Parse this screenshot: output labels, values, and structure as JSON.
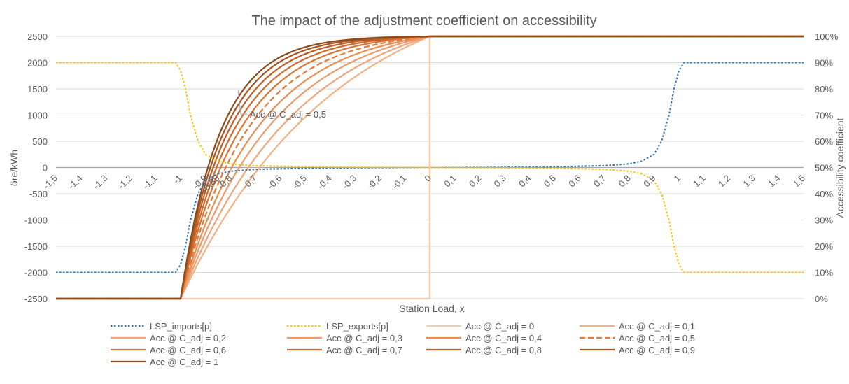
{
  "chart_data": {
    "type": "line",
    "title": "The impact of the adjustment coefficient on accessibility",
    "xlabel": "Station Load, x",
    "ylabel": "öre/kWh",
    "ylabel_right": "Accessibility coefficient",
    "xlim": [
      -1.5,
      1.5
    ],
    "ylim": [
      -2500,
      2500
    ],
    "ylim_right": [
      0,
      100
    ],
    "x_ticks": [
      "-1,5",
      "-1,4",
      "-1,3",
      "-1,2",
      "-1,1",
      "-1",
      "-0,9",
      "-0,85",
      "-0,8",
      "-0,7",
      "-0,6",
      "-0,5",
      "-0,4",
      "-0,3",
      "-0,2",
      "-0,1",
      "0",
      "0,1",
      "0,2",
      "0,3",
      "0,4",
      "0,5",
      "0,6",
      "0,7",
      "0,8",
      "0,9",
      "1",
      "1,1",
      "1,2",
      "1,3",
      "1,4",
      "1,5"
    ],
    "y_ticks_left": [
      "2500",
      "2000",
      "1500",
      "1000",
      "500",
      "0",
      "-500",
      "-1000",
      "-1500",
      "-2000",
      "-2500"
    ],
    "y_ticks_right": [
      "100%",
      "90%",
      "80%",
      "70%",
      "60%",
      "50%",
      "40%",
      "30%",
      "20%",
      "10%",
      "0%"
    ],
    "legend_position": "bottom",
    "annotation": "Acc @ C_adj = 0,5",
    "series_axis_left": [
      {
        "name": "LSP_imports[p]",
        "color": "#2E75B6",
        "style": "dotted",
        "points": [
          [
            -1.5,
            -2000
          ],
          [
            -1.02,
            -2000
          ],
          [
            -1.0,
            -1850
          ],
          [
            -0.98,
            -1500
          ],
          [
            -0.96,
            -1000
          ],
          [
            -0.93,
            -500
          ],
          [
            -0.9,
            -250
          ],
          [
            -0.85,
            -120
          ],
          [
            -0.8,
            -70
          ],
          [
            -0.7,
            -35
          ],
          [
            -0.5,
            -15
          ],
          [
            -0.3,
            -5
          ],
          [
            0,
            0
          ],
          [
            0.3,
            5
          ],
          [
            0.5,
            15
          ],
          [
            0.7,
            35
          ],
          [
            0.8,
            70
          ],
          [
            0.85,
            120
          ],
          [
            0.9,
            250
          ],
          [
            0.93,
            500
          ],
          [
            0.96,
            1000
          ],
          [
            0.98,
            1500
          ],
          [
            1.0,
            1850
          ],
          [
            1.02,
            2000
          ],
          [
            1.5,
            2000
          ]
        ]
      },
      {
        "name": "LSP_exports[p]",
        "color": "#FFC000",
        "style": "dotted",
        "points": [
          [
            -1.5,
            2000
          ],
          [
            -1.02,
            2000
          ],
          [
            -1.0,
            1850
          ],
          [
            -0.98,
            1500
          ],
          [
            -0.96,
            1000
          ],
          [
            -0.93,
            500
          ],
          [
            -0.9,
            250
          ],
          [
            -0.85,
            120
          ],
          [
            -0.8,
            70
          ],
          [
            -0.7,
            35
          ],
          [
            -0.5,
            15
          ],
          [
            -0.3,
            5
          ],
          [
            0,
            0
          ],
          [
            0.3,
            -5
          ],
          [
            0.5,
            -15
          ],
          [
            0.7,
            -35
          ],
          [
            0.8,
            -70
          ],
          [
            0.85,
            -120
          ],
          [
            0.9,
            -250
          ],
          [
            0.93,
            -500
          ],
          [
            0.96,
            -1000
          ],
          [
            0.98,
            -1500
          ],
          [
            1.0,
            -1850
          ],
          [
            1.02,
            -2000
          ],
          [
            1.5,
            -2000
          ]
        ]
      }
    ],
    "series_axis_right": [
      {
        "name": "Acc @ C_adj = 0",
        "c_adj": 0,
        "color": "#F8CBAD",
        "style": "solid"
      },
      {
        "name": "Acc @ C_adj = 0,1",
        "c_adj": 0.1,
        "color": "#F4B183",
        "style": "solid"
      },
      {
        "name": "Acc @ C_adj = 0,2",
        "c_adj": 0.2,
        "color": "#F0A47C",
        "style": "solid"
      },
      {
        "name": "Acc @ C_adj = 0,3",
        "c_adj": 0.3,
        "color": "#EC9A6B",
        "style": "solid"
      },
      {
        "name": "Acc @ C_adj = 0,4",
        "c_adj": 0.4,
        "color": "#E98E53",
        "style": "solid"
      },
      {
        "name": "Acc @ C_adj = 0,5",
        "c_adj": 0.5,
        "color": "#E27B37",
        "style": "dashed"
      },
      {
        "name": "Acc @ C_adj = 0,6",
        "c_adj": 0.6,
        "color": "#DD7331",
        "style": "solid"
      },
      {
        "name": "Acc @ C_adj = 0,7",
        "c_adj": 0.7,
        "color": "#D0692C",
        "style": "solid"
      },
      {
        "name": "Acc @ C_adj = 0,8",
        "c_adj": 0.8,
        "color": "#BD5E27",
        "style": "solid"
      },
      {
        "name": "Acc @ C_adj = 0,9",
        "c_adj": 0.9,
        "color": "#A9541F",
        "style": "solid"
      },
      {
        "name": "Acc @ C_adj = 1",
        "c_adj": 1,
        "color": "#8E4A19",
        "style": "solid"
      }
    ],
    "accessibility_model": {
      "below_x": -1,
      "value_below": 0,
      "above_x": 0,
      "value_above": 100,
      "c_adj_0_shape": "step from 0% to 100% at x = 0",
      "other_shape": "rises from 0% at x = -1 to 100% at x = 0, steeper for larger C_adj"
    }
  }
}
